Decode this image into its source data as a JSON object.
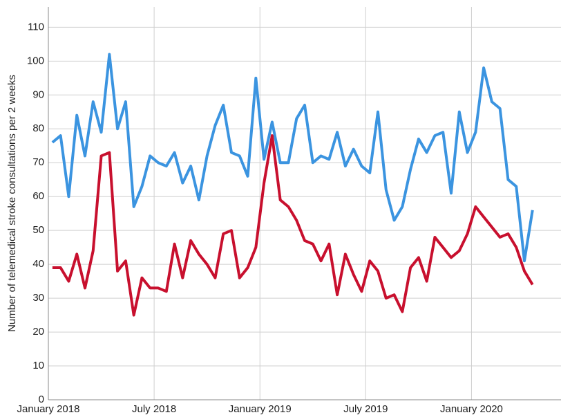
{
  "chart_data": {
    "type": "line",
    "y_label": "Number of telemedical stroke consultations per 2 weeks",
    "x": [
      1,
      3,
      5,
      7,
      9,
      11,
      13,
      15,
      17,
      19,
      21,
      23,
      25,
      27,
      29,
      31,
      33,
      35,
      37,
      39,
      41,
      43,
      45,
      47,
      49,
      51,
      53,
      55,
      57,
      59,
      61,
      63,
      65,
      67,
      69,
      71,
      73,
      75,
      77,
      79,
      81,
      83,
      85,
      87,
      89,
      91,
      93,
      95,
      97,
      99,
      101,
      103,
      105,
      107,
      109,
      111,
      113,
      115,
      117,
      119
    ],
    "series": [
      {
        "color": "#3b94e0",
        "values": [
          76,
          78,
          60,
          84,
          72,
          88,
          79,
          102,
          80,
          88,
          57,
          63,
          72,
          70,
          69,
          73,
          64,
          69,
          59,
          72,
          81,
          87,
          73,
          72,
          66,
          95,
          71,
          82,
          70,
          70,
          83,
          87,
          70,
          72,
          71,
          79,
          69,
          74,
          69,
          67,
          85,
          62,
          53,
          57,
          68,
          77,
          73,
          78,
          79,
          61,
          85,
          73,
          79,
          98,
          88,
          86,
          65,
          63,
          41,
          56
        ]
      },
      {
        "color": "#c8102e",
        "values": [
          39,
          39,
          35,
          43,
          33,
          44,
          72,
          73,
          38,
          41,
          25,
          36,
          33,
          33,
          32,
          46,
          36,
          47,
          43,
          40,
          36,
          49,
          50,
          36,
          39,
          45,
          64,
          78,
          59,
          57,
          53,
          47,
          46,
          41,
          46,
          31,
          43,
          37,
          32,
          41,
          38,
          30,
          31,
          26,
          39,
          42,
          35,
          48,
          45,
          42,
          44,
          49,
          57,
          54,
          51,
          48,
          49,
          45,
          38,
          34
        ]
      }
    ],
    "xlim": [
      0,
      126
    ],
    "xticks": [
      {
        "value": 0,
        "label": "January 2018"
      },
      {
        "value": 26,
        "label": "July 2018"
      },
      {
        "value": 52,
        "label": "January 2019"
      },
      {
        "value": 78,
        "label": "July 2019"
      },
      {
        "value": 104,
        "label": "January 2020"
      }
    ],
    "ylim": [
      0,
      116
    ],
    "yticks": [
      0,
      10,
      20,
      30,
      40,
      50,
      60,
      70,
      80,
      90,
      100,
      110
    ],
    "grid": true
  }
}
